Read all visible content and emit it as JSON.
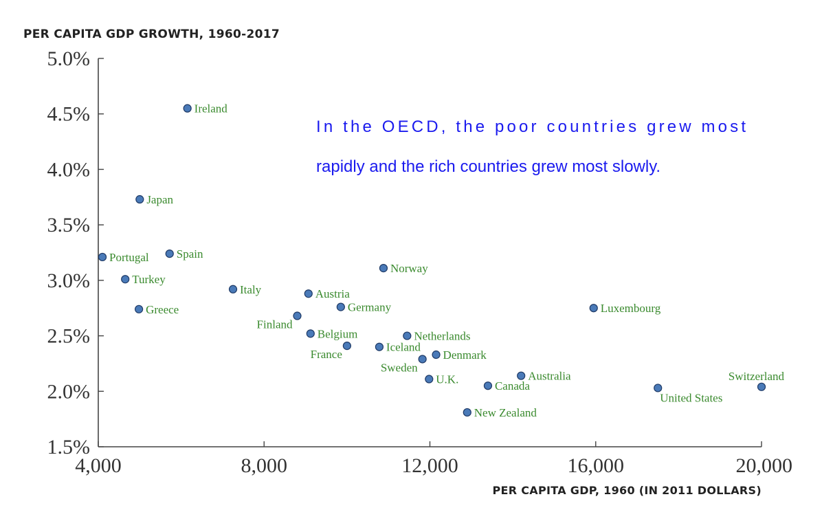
{
  "chart_data": {
    "type": "scatter",
    "ylabel": "PER CAPITA GDP GROWTH, 1960-2017",
    "xlabel": "PER CAPITA GDP, 1960 (IN 2011 DOLLARS)",
    "xlim": [
      4000,
      20000
    ],
    "ylim": [
      1.5,
      5.0
    ],
    "x_ticks": [
      4000,
      8000,
      12000,
      16000,
      20000
    ],
    "x_tick_labels": [
      "4,000",
      "8,000",
      "12,000",
      "16,000",
      "20,000"
    ],
    "y_ticks": [
      1.5,
      2.0,
      2.5,
      3.0,
      3.5,
      4.0,
      4.5,
      5.0
    ],
    "y_tick_labels": [
      "1.5%",
      "2.0%",
      "2.5%",
      "3.0%",
      "3.5%",
      "4.0%",
      "4.5%",
      "5.0%"
    ],
    "annotation": [
      "In the OECD, the poor countries grew most",
      "rapidly and the rich countries grew most slowly."
    ],
    "grid": false,
    "colors": {
      "marker": "#4a7ab8",
      "marker_edge": "#1f3a66",
      "label": "#3a8a2e",
      "annotation": "#1a1aee"
    },
    "points": [
      {
        "country": "Ireland",
        "x": 6150,
        "y": 4.55,
        "pos": "right"
      },
      {
        "country": "Japan",
        "x": 5000,
        "y": 3.73,
        "pos": "right"
      },
      {
        "country": "Portugal",
        "x": 4100,
        "y": 3.21,
        "pos": "right"
      },
      {
        "country": "Spain",
        "x": 5720,
        "y": 3.24,
        "pos": "right"
      },
      {
        "country": "Turkey",
        "x": 4650,
        "y": 3.01,
        "pos": "right"
      },
      {
        "country": "Greece",
        "x": 4980,
        "y": 2.74,
        "pos": "right"
      },
      {
        "country": "Italy",
        "x": 7250,
        "y": 2.92,
        "pos": "right"
      },
      {
        "country": "Austria",
        "x": 9070,
        "y": 2.88,
        "pos": "right"
      },
      {
        "country": "Germany",
        "x": 9850,
        "y": 2.76,
        "pos": "right"
      },
      {
        "country": "Finland",
        "x": 8800,
        "y": 2.68,
        "pos": "left-below"
      },
      {
        "country": "Belgium",
        "x": 9120,
        "y": 2.52,
        "pos": "right"
      },
      {
        "country": "France",
        "x": 10000,
        "y": 2.41,
        "pos": "left-below"
      },
      {
        "country": "Norway",
        "x": 10880,
        "y": 3.11,
        "pos": "right"
      },
      {
        "country": "Iceland",
        "x": 10780,
        "y": 2.4,
        "pos": "right"
      },
      {
        "country": "Netherlands",
        "x": 11450,
        "y": 2.5,
        "pos": "right"
      },
      {
        "country": "Sweden",
        "x": 11820,
        "y": 2.29,
        "pos": "left-below"
      },
      {
        "country": "Denmark",
        "x": 12150,
        "y": 2.33,
        "pos": "right"
      },
      {
        "country": "U.K.",
        "x": 11980,
        "y": 2.11,
        "pos": "right"
      },
      {
        "country": "New Zealand",
        "x": 12900,
        "y": 1.81,
        "pos": "right"
      },
      {
        "country": "Canada",
        "x": 13400,
        "y": 2.05,
        "pos": "right"
      },
      {
        "country": "Australia",
        "x": 14200,
        "y": 2.14,
        "pos": "right"
      },
      {
        "country": "Luxembourg",
        "x": 15950,
        "y": 2.75,
        "pos": "right"
      },
      {
        "country": "United States",
        "x": 17500,
        "y": 2.03,
        "pos": "below"
      },
      {
        "country": "Switzerland",
        "x": 20000,
        "y": 2.04,
        "pos": "above-left"
      }
    ]
  }
}
